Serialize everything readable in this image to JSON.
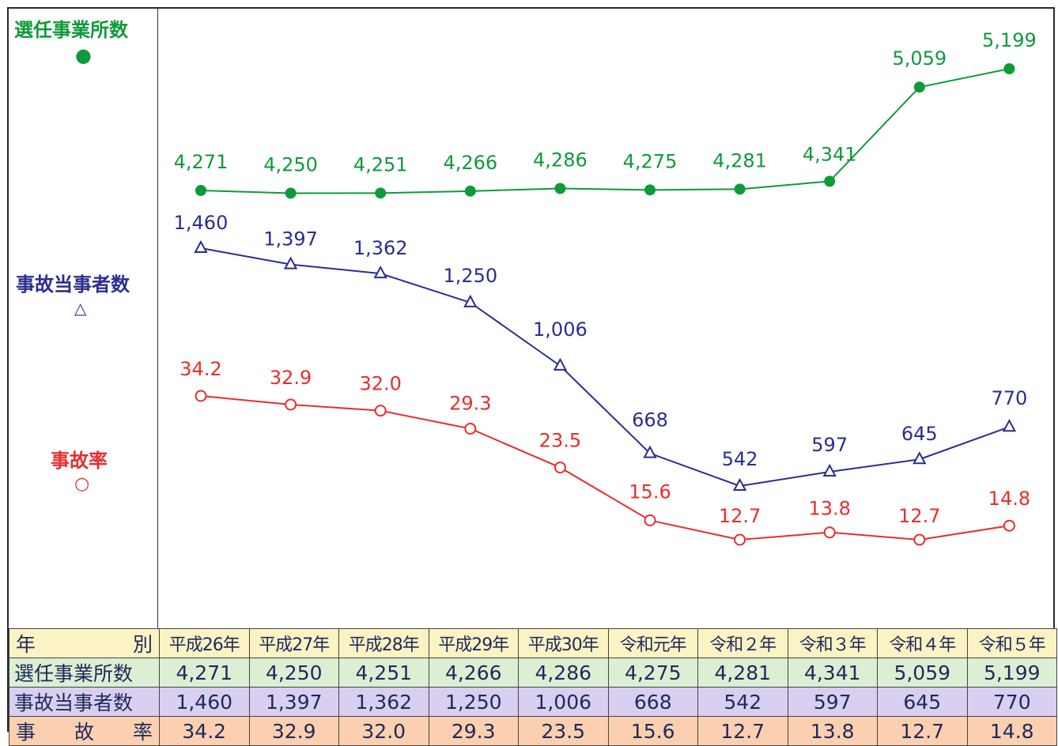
{
  "chart_data": {
    "type": "line",
    "categories": [
      "平成26年",
      "平成27年",
      "平成28年",
      "平成29年",
      "平成30年",
      "令和元年",
      "令和２年",
      "令和３年",
      "令和４年",
      "令和５年"
    ],
    "series": [
      {
        "name": "選任事業所数",
        "symbol": "●",
        "color": "#0f9a3a",
        "marker": "filled-circle",
        "values": [
          4271,
          4250,
          4251,
          4266,
          4286,
          4275,
          4281,
          4341,
          5059,
          5199
        ],
        "labels": [
          "4,271",
          "4,250",
          "4,251",
          "4,266",
          "4,286",
          "4,275",
          "4,281",
          "4,341",
          "5,059",
          "5,199"
        ]
      },
      {
        "name": "事故当事者数",
        "symbol": "△",
        "color": "#2b2d8f",
        "marker": "open-triangle",
        "values": [
          1460,
          1397,
          1362,
          1250,
          1006,
          668,
          542,
          597,
          645,
          770
        ],
        "labels": [
          "1,460",
          "1,397",
          "1,362",
          "1,250",
          "1,006",
          "668",
          "542",
          "597",
          "645",
          "770"
        ]
      },
      {
        "name": "事故率",
        "symbol": "○",
        "color": "#e62e2e",
        "marker": "open-circle",
        "values": [
          34.2,
          32.9,
          32.0,
          29.3,
          23.5,
          15.6,
          12.7,
          13.8,
          12.7,
          14.8
        ],
        "labels": [
          "34.2",
          "32.9",
          "32.0",
          "29.3",
          "23.5",
          "15.6",
          "12.7",
          "13.8",
          "12.7",
          "14.8"
        ]
      }
    ],
    "grid": false,
    "legend_placement": "left"
  },
  "table": {
    "header_label": [
      "年",
      "別"
    ],
    "rows": [
      {
        "label": "選任事業所数",
        "values": [
          "4,271",
          "4,250",
          "4,251",
          "4,266",
          "4,286",
          "4,275",
          "4,281",
          "4,341",
          "5,059",
          "5,199"
        ]
      },
      {
        "label": "事故当事者数",
        "values": [
          "1,460",
          "1,397",
          "1,362",
          "1,250",
          "1,006",
          "668",
          "542",
          "597",
          "645",
          "770"
        ]
      },
      {
        "label": [
          "事",
          "故",
          "率"
        ],
        "values": [
          "34.2",
          "32.9",
          "32.0",
          "29.3",
          "23.5",
          "15.6",
          "12.7",
          "13.8",
          "12.7",
          "14.8"
        ]
      }
    ]
  }
}
